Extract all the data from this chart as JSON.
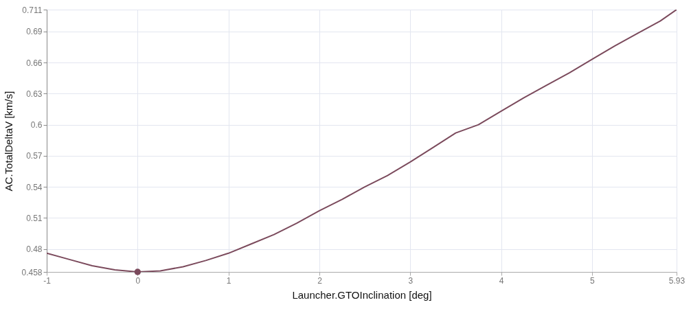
{
  "chart_data": {
    "type": "line",
    "xlabel": "Launcher.GTOInclination [deg]",
    "ylabel": "AC.TotalDeltaV [km/s]",
    "x": [
      -1,
      -0.75,
      -0.5,
      -0.25,
      0,
      0.25,
      0.5,
      0.75,
      1,
      1.25,
      1.5,
      1.75,
      2,
      2.25,
      2.5,
      2.75,
      3,
      3.25,
      3.5,
      3.75,
      4,
      4.25,
      4.5,
      4.75,
      5,
      5.25,
      5.5,
      5.75,
      5.93
    ],
    "series": [
      {
        "color": "#7b4a5c",
        "values": [
          0.476,
          0.47,
          0.464,
          0.46,
          0.458,
          0.459,
          0.463,
          0.469,
          0.476,
          0.485,
          0.494,
          0.505,
          0.517,
          0.528,
          0.54,
          0.551,
          0.564,
          0.578,
          0.592,
          0.6,
          0.613,
          0.626,
          0.638,
          0.65,
          0.663,
          0.676,
          0.688,
          0.7,
          0.711
        ]
      },
      {
        "type": "scatter",
        "color": "#7b4a5c",
        "x": [
          0
        ],
        "values": [
          0.458
        ]
      }
    ],
    "xlim": [
      -1,
      5.93
    ],
    "xticks": [
      -1,
      0,
      1,
      2,
      3,
      4,
      5,
      5.93
    ],
    "ylim": [
      0.458,
      0.711
    ],
    "yticks": [
      0.458,
      0.48,
      0.51,
      0.54,
      0.57,
      0.6,
      0.63,
      0.66,
      0.69,
      0.711
    ],
    "grid": true,
    "line_style": "solid"
  }
}
